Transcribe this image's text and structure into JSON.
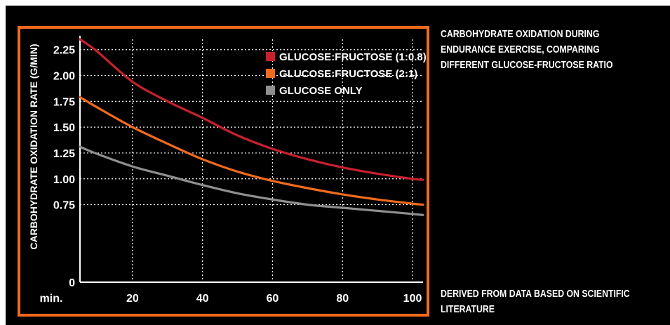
{
  "caption": {
    "line1": "CARBOHYDRATE OXIDATION DURING",
    "line2": "ENDURANCE EXERCISE, COMPARING",
    "line3": "DIFFERENT GLUCOSE-FRUCTOSE RATIO"
  },
  "source_note": {
    "line1": "DERIVED FROM DATA BASED ON SCIENTIFIC",
    "line2": "LITERATURE"
  },
  "colors": {
    "background": "#000000",
    "frame": "#f26b1d",
    "grid": "#ffffff",
    "text": "#ffffff"
  },
  "chart_data": {
    "type": "line",
    "ylabel": "CARBOHYDRATE OXIDATION RATE (G/MIN)",
    "xlabel": "min.",
    "x_ticks": [
      20,
      40,
      60,
      80,
      100
    ],
    "y_ticks": [
      {
        "value": 0,
        "label": "0"
      },
      {
        "value": 0.75,
        "label": "0.75"
      },
      {
        "value": 1.0,
        "label": "1.00"
      },
      {
        "value": 1.25,
        "label": "1.25"
      },
      {
        "value": 1.5,
        "label": "1.50"
      },
      {
        "value": 1.75,
        "label": "1.75"
      },
      {
        "value": 2.0,
        "label": "2.00"
      },
      {
        "value": 2.25,
        "label": "2.25"
      }
    ],
    "ylim": [
      0,
      2.35
    ],
    "xlim": [
      5,
      103
    ],
    "grid": true,
    "legend_position": "top-right",
    "series": [
      {
        "name": "GLUCOSE:FRUCTOSE (1:0.8)",
        "color": "#c8202f",
        "x": [
          5,
          10,
          20,
          30,
          40,
          50,
          60,
          70,
          80,
          90,
          100,
          103
        ],
        "y": [
          2.35,
          2.23,
          1.94,
          1.75,
          1.59,
          1.42,
          1.29,
          1.19,
          1.11,
          1.05,
          1.0,
          0.99
        ]
      },
      {
        "name": "GLUCOSE:FRUCTOSE (2:1)",
        "color": "#f26b1d",
        "x": [
          5,
          10,
          20,
          30,
          40,
          50,
          60,
          70,
          80,
          90,
          100,
          103
        ],
        "y": [
          1.79,
          1.69,
          1.5,
          1.34,
          1.19,
          1.07,
          0.98,
          0.91,
          0.85,
          0.8,
          0.76,
          0.75
        ]
      },
      {
        "name": "GLUCOSE ONLY",
        "color": "#8f8f8f",
        "x": [
          5,
          10,
          20,
          30,
          40,
          50,
          60,
          70,
          80,
          90,
          100,
          103
        ],
        "y": [
          1.31,
          1.24,
          1.12,
          1.03,
          0.94,
          0.86,
          0.8,
          0.75,
          0.72,
          0.69,
          0.66,
          0.65
        ]
      }
    ]
  }
}
